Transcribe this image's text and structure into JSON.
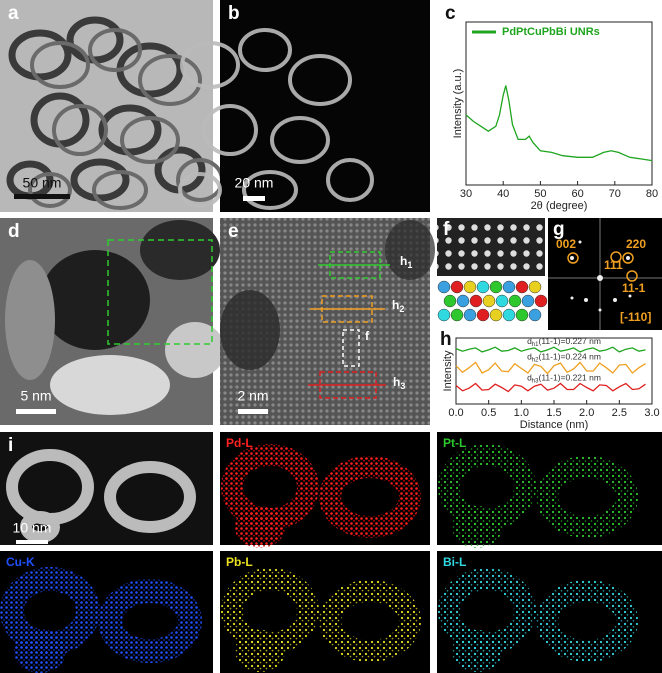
{
  "panels": {
    "a": {
      "label": "a",
      "scale_bar": "50 nm"
    },
    "b": {
      "label": "b",
      "scale_bar": "20 nm"
    },
    "c": {
      "label": "c"
    },
    "d": {
      "label": "d",
      "scale_bar": "5 nm"
    },
    "e": {
      "label": "e",
      "scale_bar": "2 nm",
      "regions": [
        {
          "text": "h",
          "sub": "1"
        },
        {
          "text": "h",
          "sub": "2"
        },
        {
          "text": "h",
          "sub": "3"
        }
      ],
      "inset_label": "f"
    },
    "f": {
      "label": "f"
    },
    "g": {
      "label": "g",
      "spots": [
        "002",
        "220",
        "111",
        "11-1"
      ],
      "zone_axis": "[-110]"
    },
    "h": {
      "label": "h"
    },
    "i": {
      "label": "i",
      "scale_bar": "10 nm",
      "maps": [
        "Pd-L",
        "Pt-L",
        "Cu-K",
        "Pb-L",
        "Bi-L"
      ]
    }
  },
  "chart_data": [
    {
      "type": "line",
      "xlabel": "2θ (degree)",
      "ylabel": "Intensity (a.u.)",
      "x": [
        30,
        32,
        34,
        36,
        38,
        39,
        40,
        40.7,
        41.5,
        42.5,
        44,
        46,
        47,
        48,
        50,
        53,
        56,
        60,
        64,
        67,
        69,
        71,
        74,
        77,
        80
      ],
      "series": [
        {
          "name": "PdPtCuPbBi UNRs",
          "color": "#1fa51f",
          "values": [
            43,
            39,
            36,
            33,
            36,
            43,
            55,
            61,
            52,
            37,
            28,
            28,
            30,
            26,
            21,
            20,
            18,
            17,
            17,
            20,
            21,
            20,
            17,
            16,
            15
          ]
        }
      ],
      "xlim": [
        30,
        80
      ],
      "xticks": [
        30,
        40,
        50,
        60,
        70,
        80
      ],
      "ylim": [
        0,
        100
      ],
      "legend": "upper right"
    },
    {
      "type": "line",
      "xlabel": "Distance (nm)",
      "ylabel": "Intensity",
      "x": [
        0,
        0.1,
        0.2,
        0.3,
        0.4,
        0.5,
        0.6,
        0.7,
        0.8,
        0.9,
        1,
        1.1,
        1.2,
        1.3,
        1.4,
        1.5,
        1.6,
        1.7,
        1.8,
        1.9,
        2,
        2.1,
        2.2,
        2.3,
        2.4,
        2.5,
        2.6,
        2.7,
        2.8,
        2.9
      ],
      "series": [
        {
          "color": "#1fa51f",
          "values": [
            84,
            80,
            83,
            85,
            79,
            82,
            86,
            80,
            81,
            85,
            80,
            83,
            85,
            79,
            82,
            86,
            80,
            82,
            85,
            79,
            83,
            85,
            80,
            82,
            86,
            79,
            83,
            85,
            80,
            82
          ]
        },
        {
          "color": "#f0a020",
          "values": [
            58,
            48,
            55,
            63,
            47,
            52,
            62,
            50,
            49,
            61,
            54,
            47,
            60,
            57,
            46,
            58,
            62,
            48,
            53,
            63,
            50,
            50,
            62,
            55,
            47,
            59,
            60,
            47,
            55,
            61
          ]
        },
        {
          "color": "#e02020",
          "values": [
            28,
            20,
            24,
            31,
            21,
            22,
            30,
            25,
            19,
            29,
            27,
            20,
            27,
            30,
            21,
            24,
            31,
            22,
            22,
            31,
            25,
            20,
            29,
            28,
            20,
            26,
            31,
            22,
            23,
            30
          ]
        }
      ],
      "annotations": [
        {
          "d": "d",
          "sub": "h1",
          "text": "(11-1)=0.227 nm"
        },
        {
          "d": "d",
          "sub": "h2",
          "text": "(11-1)=0.224 nm"
        },
        {
          "d": "d",
          "sub": "h3",
          "text": "(11-1)=0.221 nm"
        }
      ],
      "xlim": [
        0,
        3
      ],
      "xticks": [
        {
          "value": 0,
          "label": "0.0"
        },
        0.5,
        {
          "value": 1,
          "label": "1.0"
        },
        1.5,
        {
          "value": 2,
          "label": "2.0"
        },
        2.5,
        {
          "value": 3,
          "label": "3.0"
        }
      ],
      "ylim": [
        0,
        100
      ]
    }
  ]
}
